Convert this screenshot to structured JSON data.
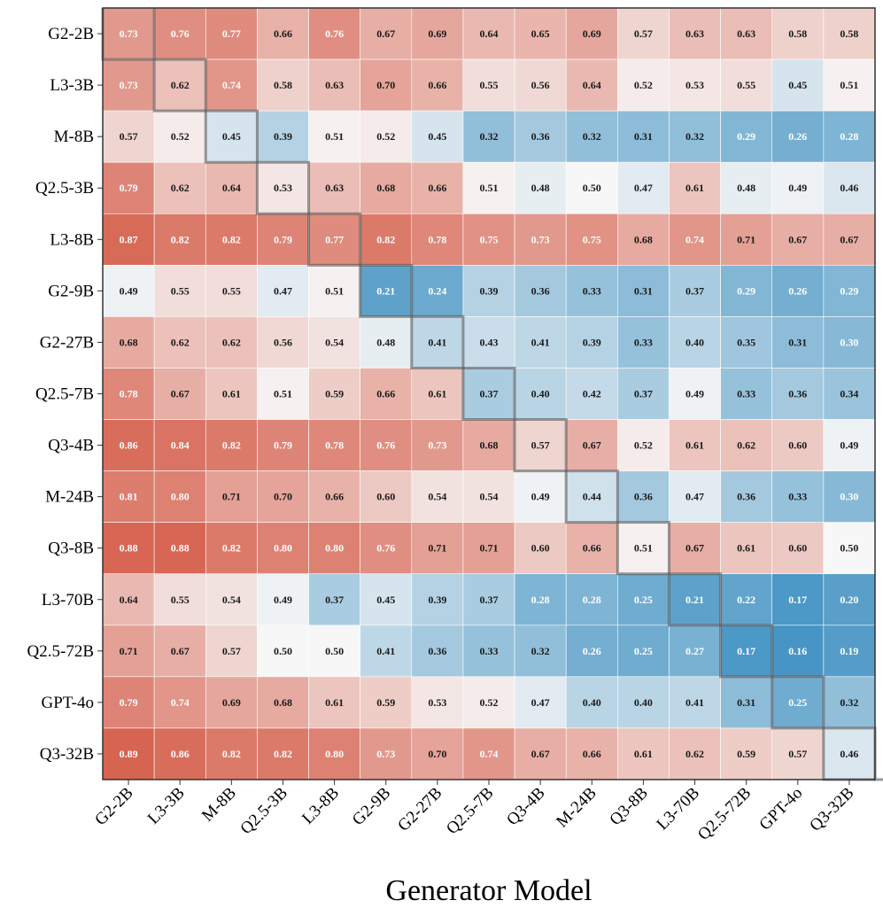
{
  "chart_data": {
    "type": "heatmap",
    "title": "",
    "xlabel": "Generator Model",
    "ylabel": "",
    "rows": [
      "G2-2B",
      "L3-3B",
      "M-8B",
      "Q2.5-3B",
      "L3-8B",
      "G2-9B",
      "G2-27B",
      "Q2.5-7B",
      "Q3-4B",
      "M-24B",
      "Q3-8B",
      "L3-70B",
      "Q2.5-72B",
      "GPT-4o",
      "Q3-32B"
    ],
    "columns": [
      "G2-2B",
      "L3-3B",
      "M-8B",
      "Q2.5-3B",
      "L3-8B",
      "G2-9B",
      "G2-27B",
      "Q2.5-7B",
      "Q3-4B",
      "M-24B",
      "Q3-8B",
      "L3-70B",
      "Q2.5-72B",
      "GPT-4o",
      "Q3-32B"
    ],
    "values": [
      [
        "0.73",
        "0.76",
        "0.77",
        "0.66",
        "0.76",
        "0.67",
        "0.69",
        "0.64",
        "0.65",
        "0.69",
        "0.57",
        "0.63",
        "0.63",
        "0.58",
        "0.58"
      ],
      [
        "0.73",
        "0.62",
        "0.74",
        "0.58",
        "0.63",
        "0.70",
        "0.66",
        "0.55",
        "0.56",
        "0.64",
        "0.52",
        "0.53",
        "0.55",
        "0.45",
        "0.51"
      ],
      [
        "0.57",
        "0.52",
        "0.45",
        "0.39",
        "0.51",
        "0.52",
        "0.45",
        "0.32",
        "0.36",
        "0.32",
        "0.31",
        "0.32",
        "0.29",
        "0.26",
        "0.28"
      ],
      [
        "0.79",
        "0.62",
        "0.64",
        "0.53",
        "0.63",
        "0.68",
        "0.66",
        "0.51",
        "0.48",
        "0.50",
        "0.47",
        "0.61",
        "0.48",
        "0.49",
        "0.46"
      ],
      [
        "0.87",
        "0.82",
        "0.82",
        "0.79",
        "0.77",
        "0.82",
        "0.78",
        "0.75",
        "0.73",
        "0.75",
        "0.68",
        "0.74",
        "0.71",
        "0.67",
        "0.67"
      ],
      [
        "0.49",
        "0.55",
        "0.55",
        "0.47",
        "0.51",
        "0.21",
        "0.24",
        "0.39",
        "0.36",
        "0.33",
        "0.31",
        "0.37",
        "0.29",
        "0.26",
        "0.29"
      ],
      [
        "0.68",
        "0.62",
        "0.62",
        "0.56",
        "0.54",
        "0.48",
        "0.41",
        "0.43",
        "0.41",
        "0.39",
        "0.33",
        "0.40",
        "0.35",
        "0.31",
        "0.30"
      ],
      [
        "0.78",
        "0.67",
        "0.61",
        "0.51",
        "0.59",
        "0.66",
        "0.61",
        "0.37",
        "0.40",
        "0.42",
        "0.37",
        "0.49",
        "0.33",
        "0.36",
        "0.34"
      ],
      [
        "0.86",
        "0.84",
        "0.82",
        "0.79",
        "0.78",
        "0.76",
        "0.73",
        "0.68",
        "0.57",
        "0.67",
        "0.52",
        "0.61",
        "0.62",
        "0.60",
        "0.49"
      ],
      [
        "0.81",
        "0.80",
        "0.71",
        "0.70",
        "0.66",
        "0.60",
        "0.54",
        "0.54",
        "0.49",
        "0.44",
        "0.36",
        "0.47",
        "0.36",
        "0.33",
        "0.30"
      ],
      [
        "0.88",
        "0.88",
        "0.82",
        "0.80",
        "0.80",
        "0.76",
        "0.71",
        "0.71",
        "0.60",
        "0.66",
        "0.51",
        "0.67",
        "0.61",
        "0.60",
        "0.50"
      ],
      [
        "0.64",
        "0.55",
        "0.54",
        "0.49",
        "0.37",
        "0.45",
        "0.39",
        "0.37",
        "0.28",
        "0.28",
        "0.25",
        "0.21",
        "0.22",
        "0.17",
        "0.20"
      ],
      [
        "0.71",
        "0.67",
        "0.57",
        "0.50",
        "0.50",
        "0.41",
        "0.36",
        "0.33",
        "0.32",
        "0.26",
        "0.25",
        "0.27",
        "0.17",
        "0.16",
        "0.19"
      ],
      [
        "0.79",
        "0.74",
        "0.69",
        "0.68",
        "0.61",
        "0.59",
        "0.53",
        "0.52",
        "0.47",
        "0.40",
        "0.40",
        "0.41",
        "0.31",
        "0.25",
        "0.32"
      ],
      [
        "0.89",
        "0.86",
        "0.82",
        "0.82",
        "0.80",
        "0.73",
        "0.70",
        "0.74",
        "0.67",
        "0.66",
        "0.61",
        "0.62",
        "0.59",
        "0.57",
        "0.46"
      ]
    ],
    "color_scale": {
      "type": "diverging",
      "low_color": "#4393c3",
      "mid_color": "#f7f7f7",
      "high_color": "#d6604d",
      "center_value": 0.5,
      "min_value": 0.15,
      "max_value": 0.9
    },
    "diagonal_highlight": true,
    "grid": false,
    "legend": "none"
  }
}
